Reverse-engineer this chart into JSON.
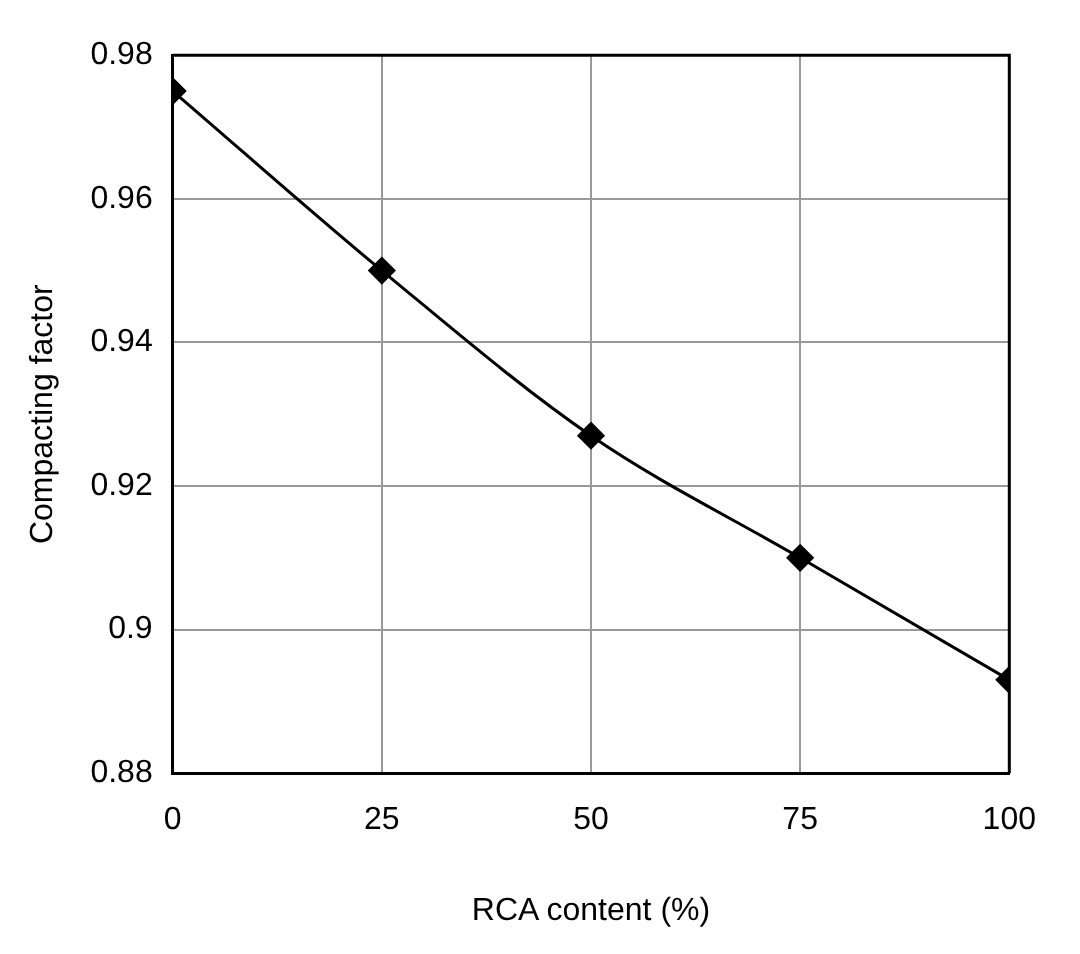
{
  "chart_data": {
    "type": "line",
    "xlabel": "RCA content (%)",
    "ylabel": "Compacting factor",
    "x": [
      0,
      25,
      50,
      75,
      100
    ],
    "series": [
      {
        "color": "#000000",
        "values": [
          0.975,
          0.95,
          0.927,
          0.91,
          0.893
        ]
      }
    ],
    "xlim": [
      0,
      100
    ],
    "xticks": [
      0,
      25,
      50,
      75,
      100
    ],
    "ylim": [
      0.88,
      0.98
    ],
    "yticks": [
      0.88,
      0.9,
      0.92,
      0.94,
      0.96,
      0.98
    ],
    "grid": true,
    "legend": false,
    "marker": "diamond",
    "line_style": "solid"
  }
}
